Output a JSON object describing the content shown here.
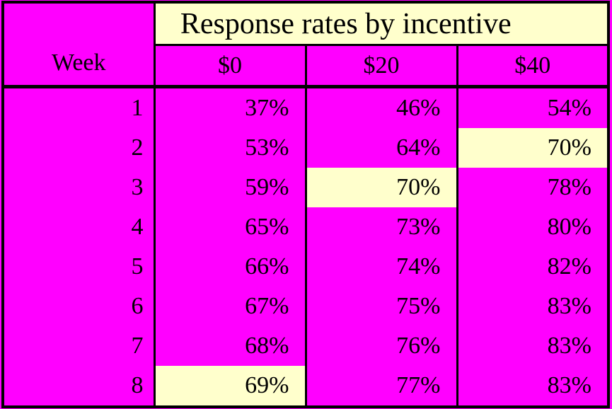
{
  "page": {
    "background_color": "#FF00FF",
    "highlight_color": "#FFFFCC",
    "border_color": "#000000"
  },
  "table": {
    "title": "Response rates by incentive",
    "week_header": "Week",
    "columns": [
      "$0",
      "$20",
      "$40"
    ],
    "rows": [
      {
        "week": "1",
        "values": [
          "37%",
          "46%",
          "54%"
        ],
        "highlight": null
      },
      {
        "week": "2",
        "values": [
          "53%",
          "64%",
          "70%"
        ],
        "highlight": 2
      },
      {
        "week": "3",
        "values": [
          "59%",
          "70%",
          "78%"
        ],
        "highlight": 1
      },
      {
        "week": "4",
        "values": [
          "65%",
          "73%",
          "80%"
        ],
        "highlight": null
      },
      {
        "week": "5",
        "values": [
          "66%",
          "74%",
          "82%"
        ],
        "highlight": null
      },
      {
        "week": "6",
        "values": [
          "67%",
          "75%",
          "83%"
        ],
        "highlight": null
      },
      {
        "week": "7",
        "values": [
          "68%",
          "76%",
          "83%"
        ],
        "highlight": null
      },
      {
        "week": "8",
        "values": [
          "69%",
          "77%",
          "83%"
        ],
        "highlight": 0
      }
    ]
  },
  "chart_data": {
    "type": "table",
    "title": "Response rates by incentive",
    "xlabel": "Week",
    "categories": [
      1,
      2,
      3,
      4,
      5,
      6,
      7,
      8
    ],
    "unit": "%",
    "series": [
      {
        "name": "$0",
        "values": [
          37,
          53,
          59,
          65,
          66,
          67,
          68,
          69
        ]
      },
      {
        "name": "$20",
        "values": [
          46,
          64,
          70,
          73,
          74,
          75,
          76,
          77
        ]
      },
      {
        "name": "$40",
        "values": [
          54,
          70,
          78,
          80,
          82,
          83,
          83,
          83
        ]
      }
    ],
    "highlighted_cells": [
      {
        "week": 2,
        "series": "$40",
        "value": 70
      },
      {
        "week": 3,
        "series": "$20",
        "value": 70
      },
      {
        "week": 8,
        "series": "$0",
        "value": 69
      }
    ]
  }
}
